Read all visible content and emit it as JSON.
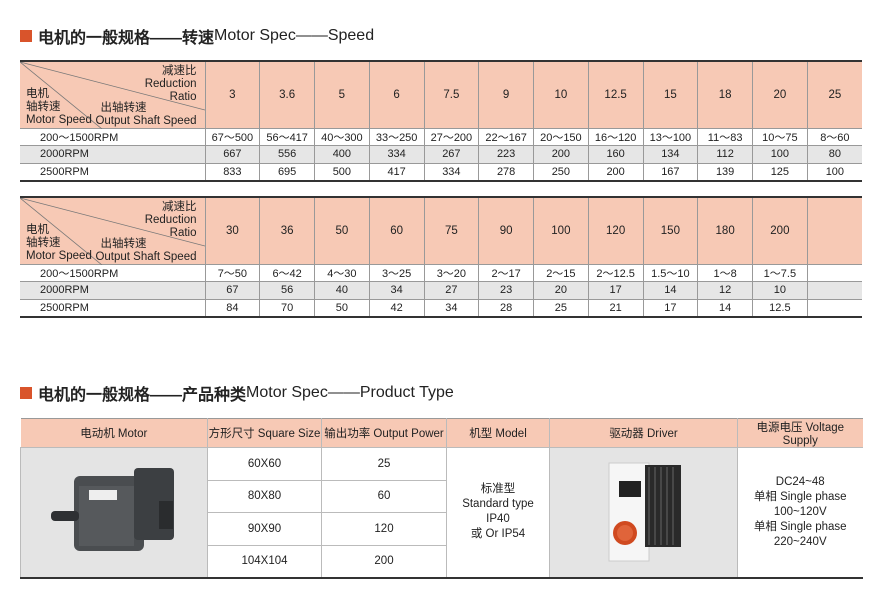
{
  "section1": {
    "title_cn": "电机的一般规格——转速",
    "title_en": " Motor Spec——Speed"
  },
  "corner": {
    "ratio_cn": "减速比",
    "ratio_en1": "Reduction",
    "ratio_en2": "Ratio",
    "motor_cn1": "电机",
    "motor_cn2": "轴转速",
    "motor_en": "Motor Speed",
    "out_cn": "出轴转速",
    "out_en": "Output Shaft Speed"
  },
  "table1": {
    "ratios": [
      "3",
      "3.6",
      "5",
      "6",
      "7.5",
      "9",
      "10",
      "12.5",
      "15",
      "18",
      "20",
      "25"
    ],
    "rows": [
      {
        "speed": "200～1500RPM",
        "values": [
          "67～500",
          "56～417",
          "40～300",
          "33～250",
          "27～200",
          "22～167",
          "20～150",
          "16～120",
          "13～100",
          "11～83",
          "10～75",
          "8～60"
        ]
      },
      {
        "speed": "2000RPM",
        "values": [
          "667",
          "556",
          "400",
          "334",
          "267",
          "223",
          "200",
          "160",
          "134",
          "112",
          "100",
          "80"
        ]
      },
      {
        "speed": "2500RPM",
        "values": [
          "833",
          "695",
          "500",
          "417",
          "334",
          "278",
          "250",
          "200",
          "167",
          "139",
          "125",
          "100"
        ]
      }
    ]
  },
  "table2": {
    "ratios": [
      "30",
      "36",
      "50",
      "60",
      "75",
      "90",
      "100",
      "120",
      "150",
      "180",
      "200",
      ""
    ],
    "rows": [
      {
        "speed": "200～1500RPM",
        "values": [
          "7～50",
          "6～42",
          "4～30",
          "3～25",
          "3～20",
          "2～17",
          "2～15",
          "2～12.5",
          "1.5～10",
          "1～8",
          "1～7.5",
          ""
        ]
      },
      {
        "speed": "2000RPM",
        "values": [
          "67",
          "56",
          "40",
          "34",
          "27",
          "23",
          "20",
          "17",
          "14",
          "12",
          "10",
          ""
        ]
      },
      {
        "speed": "2500RPM",
        "values": [
          "84",
          "70",
          "50",
          "42",
          "34",
          "28",
          "25",
          "21",
          "17",
          "14",
          "12.5",
          ""
        ]
      }
    ]
  },
  "section2": {
    "title_cn": "电机的一般规格——产品种类",
    "title_en": " Motor Spec——Product Type"
  },
  "product": {
    "headers": [
      "电动机 Motor",
      "方形尺寸 Square Size",
      "输出功率 Output Power",
      "机型 Model",
      "驱动器 Driver",
      "电源电压 Voltage Supply"
    ],
    "sizes": [
      "60X60",
      "80X80",
      "90X90",
      "104X104"
    ],
    "powers": [
      "25",
      "60",
      "120",
      "200"
    ],
    "model": [
      "标准型",
      "Standard type",
      "IP40",
      "或 Or IP54"
    ],
    "voltage": [
      "DC24~48",
      "单相 Single phase",
      "100~120V",
      "单相 Single phase",
      "220~240V"
    ]
  },
  "colors": {
    "accent": "#d9542b",
    "header": "#f7c9b5",
    "stripe": "#e6e6e6"
  }
}
